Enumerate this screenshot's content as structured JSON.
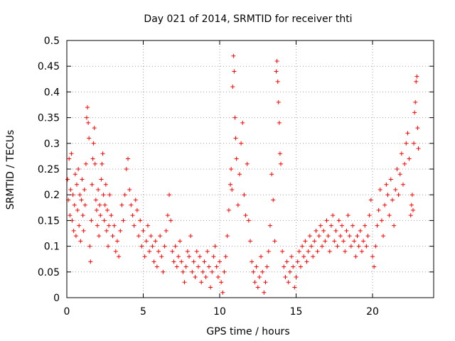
{
  "chart_data": {
    "type": "scatter",
    "title": "Day 021 of 2014, SRMTID for receiver thti",
    "xlabel": "GPS time / hours",
    "ylabel": "SRMTID / TECUs",
    "xlim": [
      0,
      24
    ],
    "ylim": [
      0,
      0.5
    ],
    "x_ticks": [
      0,
      5,
      10,
      15,
      20
    ],
    "x_tick_labels": [
      "0",
      "5",
      "10",
      "15",
      "20"
    ],
    "y_ticks": [
      0,
      0.05,
      0.1,
      0.15,
      0.2,
      0.25,
      0.3,
      0.35,
      0.4,
      0.45,
      0.5
    ],
    "y_tick_labels": [
      "0",
      "0.05",
      "0.1",
      "0.15",
      "0.2",
      "0.25",
      "0.3",
      "0.35",
      "0.4",
      "0.45",
      "0.5"
    ],
    "grid": true,
    "marker": "plus",
    "color": "#ff0000",
    "series": [
      {
        "name": "SRMTID",
        "points": [
          [
            0.05,
            0.23
          ],
          [
            0.1,
            0.19
          ],
          [
            0.15,
            0.27
          ],
          [
            0.2,
            0.16
          ],
          [
            0.25,
            0.21
          ],
          [
            0.3,
            0.28
          ],
          [
            0.35,
            0.15
          ],
          [
            0.4,
            0.2
          ],
          [
            0.45,
            0.13
          ],
          [
            0.5,
            0.18
          ],
          [
            0.55,
            0.24
          ],
          [
            0.6,
            0.12
          ],
          [
            0.65,
            0.22
          ],
          [
            0.7,
            0.17
          ],
          [
            0.75,
            0.25
          ],
          [
            0.8,
            0.14
          ],
          [
            0.85,
            0.2
          ],
          [
            0.9,
            0.11
          ],
          [
            0.95,
            0.19
          ],
          [
            1.0,
            0.23
          ],
          [
            1.05,
            0.16
          ],
          [
            1.1,
            0.13
          ],
          [
            1.15,
            0.21
          ],
          [
            1.2,
            0.18
          ],
          [
            1.25,
            0.26
          ],
          [
            1.3,
            0.35
          ],
          [
            1.35,
            0.37
          ],
          [
            1.4,
            0.34
          ],
          [
            1.45,
            0.31
          ],
          [
            1.5,
            0.1
          ],
          [
            1.55,
            0.07
          ],
          [
            1.6,
            0.15
          ],
          [
            1.65,
            0.22
          ],
          [
            1.7,
            0.27
          ],
          [
            1.75,
            0.3
          ],
          [
            1.8,
            0.33
          ],
          [
            1.85,
            0.26
          ],
          [
            1.9,
            0.19
          ],
          [
            1.95,
            0.17
          ],
          [
            2.0,
            0.14
          ],
          [
            2.05,
            0.21
          ],
          [
            2.1,
            0.12
          ],
          [
            2.15,
            0.18
          ],
          [
            2.2,
            0.16
          ],
          [
            2.25,
            0.23
          ],
          [
            2.3,
            0.26
          ],
          [
            2.35,
            0.28
          ],
          [
            2.4,
            0.2
          ],
          [
            2.45,
            0.15
          ],
          [
            2.5,
            0.18
          ],
          [
            2.55,
            0.22
          ],
          [
            2.6,
            0.13
          ],
          [
            2.65,
            0.17
          ],
          [
            2.7,
            0.1
          ],
          [
            2.75,
            0.14
          ],
          [
            2.8,
            0.2
          ],
          [
            2.9,
            0.16
          ],
          [
            3.0,
            0.12
          ],
          [
            3.1,
            0.14
          ],
          [
            3.2,
            0.09
          ],
          [
            3.3,
            0.11
          ],
          [
            3.4,
            0.08
          ],
          [
            3.5,
            0.13
          ],
          [
            3.6,
            0.18
          ],
          [
            3.7,
            0.15
          ],
          [
            3.8,
            0.2
          ],
          [
            3.9,
            0.25
          ],
          [
            4.0,
            0.27
          ],
          [
            4.1,
            0.21
          ],
          [
            4.2,
            0.18
          ],
          [
            4.3,
            0.16
          ],
          [
            4.4,
            0.14
          ],
          [
            4.5,
            0.19
          ],
          [
            4.6,
            0.17
          ],
          [
            4.7,
            0.12
          ],
          [
            4.8,
            0.15
          ],
          [
            4.9,
            0.1
          ],
          [
            5.0,
            0.13
          ],
          [
            5.1,
            0.08
          ],
          [
            5.2,
            0.11
          ],
          [
            5.3,
            0.14
          ],
          [
            5.4,
            0.09
          ],
          [
            5.5,
            0.12
          ],
          [
            5.6,
            0.1
          ],
          [
            5.7,
            0.07
          ],
          [
            5.8,
            0.11
          ],
          [
            5.9,
            0.06
          ],
          [
            6.0,
            0.09
          ],
          [
            6.1,
            0.12
          ],
          [
            6.2,
            0.08
          ],
          [
            6.3,
            0.05
          ],
          [
            6.4,
            0.1
          ],
          [
            6.5,
            0.13
          ],
          [
            6.6,
            0.16
          ],
          [
            6.7,
            0.2
          ],
          [
            6.8,
            0.15
          ],
          [
            6.9,
            0.09
          ],
          [
            7.0,
            0.07
          ],
          [
            7.1,
            0.1
          ],
          [
            7.2,
            0.06
          ],
          [
            7.3,
            0.08
          ],
          [
            7.4,
            0.11
          ],
          [
            7.5,
            0.07
          ],
          [
            7.6,
            0.05
          ],
          [
            7.7,
            0.03
          ],
          [
            7.8,
            0.06
          ],
          [
            7.9,
            0.09
          ],
          [
            8.0,
            0.08
          ],
          [
            8.1,
            0.12
          ],
          [
            8.2,
            0.05
          ],
          [
            8.3,
            0.07
          ],
          [
            8.4,
            0.04
          ],
          [
            8.5,
            0.09
          ],
          [
            8.6,
            0.06
          ],
          [
            8.7,
            0.08
          ],
          [
            8.8,
            0.03
          ],
          [
            8.9,
            0.05
          ],
          [
            9.0,
            0.07
          ],
          [
            9.1,
            0.04
          ],
          [
            9.2,
            0.09
          ],
          [
            9.3,
            0.06
          ],
          [
            9.4,
            0.02
          ],
          [
            9.5,
            0.05
          ],
          [
            9.6,
            0.08
          ],
          [
            9.7,
            0.1
          ],
          [
            9.8,
            0.06
          ],
          [
            9.9,
            0.04
          ],
          [
            10.0,
            0.07
          ],
          [
            10.1,
            0.03
          ],
          [
            10.2,
            0.01
          ],
          [
            10.3,
            0.05
          ],
          [
            10.4,
            0.08
          ],
          [
            10.5,
            0.12
          ],
          [
            10.6,
            0.17
          ],
          [
            10.7,
            0.22
          ],
          [
            10.75,
            0.25
          ],
          [
            10.8,
            0.21
          ],
          [
            10.85,
            0.41
          ],
          [
            10.9,
            0.47
          ],
          [
            10.95,
            0.44
          ],
          [
            11.0,
            0.35
          ],
          [
            11.05,
            0.31
          ],
          [
            11.1,
            0.27
          ],
          [
            11.2,
            0.18
          ],
          [
            11.3,
            0.24
          ],
          [
            11.4,
            0.3
          ],
          [
            11.5,
            0.34
          ],
          [
            11.6,
            0.2
          ],
          [
            11.7,
            0.16
          ],
          [
            11.8,
            0.26
          ],
          [
            11.9,
            0.15
          ],
          [
            12.0,
            0.11
          ],
          [
            12.1,
            0.07
          ],
          [
            12.2,
            0.05
          ],
          [
            12.3,
            0.03
          ],
          [
            12.4,
            0.06
          ],
          [
            12.5,
            0.02
          ],
          [
            12.6,
            0.04
          ],
          [
            12.7,
            0.08
          ],
          [
            12.8,
            0.05
          ],
          [
            12.9,
            0.01
          ],
          [
            13.0,
            0.03
          ],
          [
            13.1,
            0.06
          ],
          [
            13.2,
            0.09
          ],
          [
            13.3,
            0.14
          ],
          [
            13.4,
            0.24
          ],
          [
            13.5,
            0.19
          ],
          [
            13.6,
            0.11
          ],
          [
            13.7,
            0.44
          ],
          [
            13.75,
            0.46
          ],
          [
            13.8,
            0.42
          ],
          [
            13.85,
            0.38
          ],
          [
            13.9,
            0.34
          ],
          [
            13.95,
            0.28
          ],
          [
            14.0,
            0.26
          ],
          [
            14.1,
            0.09
          ],
          [
            14.2,
            0.06
          ],
          [
            14.3,
            0.04
          ],
          [
            14.4,
            0.07
          ],
          [
            14.5,
            0.03
          ],
          [
            14.6,
            0.05
          ],
          [
            14.7,
            0.08
          ],
          [
            14.8,
            0.06
          ],
          [
            14.9,
            0.02
          ],
          [
            15.0,
            0.04
          ],
          [
            15.1,
            0.07
          ],
          [
            15.2,
            0.09
          ],
          [
            15.3,
            0.06
          ],
          [
            15.4,
            0.1
          ],
          [
            15.5,
            0.08
          ],
          [
            15.6,
            0.11
          ],
          [
            15.7,
            0.07
          ],
          [
            15.8,
            0.09
          ],
          [
            15.9,
            0.12
          ],
          [
            16.0,
            0.1
          ],
          [
            16.1,
            0.08
          ],
          [
            16.2,
            0.11
          ],
          [
            16.3,
            0.13
          ],
          [
            16.4,
            0.09
          ],
          [
            16.5,
            0.12
          ],
          [
            16.6,
            0.14
          ],
          [
            16.7,
            0.1
          ],
          [
            16.8,
            0.13
          ],
          [
            16.9,
            0.11
          ],
          [
            17.0,
            0.15
          ],
          [
            17.1,
            0.12
          ],
          [
            17.2,
            0.09
          ],
          [
            17.3,
            0.14
          ],
          [
            17.4,
            0.16
          ],
          [
            17.5,
            0.11
          ],
          [
            17.6,
            0.13
          ],
          [
            17.7,
            0.1
          ],
          [
            17.8,
            0.15
          ],
          [
            17.9,
            0.12
          ],
          [
            18.0,
            0.14
          ],
          [
            18.1,
            0.11
          ],
          [
            18.2,
            0.09
          ],
          [
            18.3,
            0.13
          ],
          [
            18.4,
            0.16
          ],
          [
            18.5,
            0.12
          ],
          [
            18.6,
            0.1
          ],
          [
            18.7,
            0.14
          ],
          [
            18.8,
            0.11
          ],
          [
            18.9,
            0.08
          ],
          [
            19.0,
            0.12
          ],
          [
            19.1,
            0.1
          ],
          [
            19.2,
            0.13
          ],
          [
            19.3,
            0.09
          ],
          [
            19.4,
            0.11
          ],
          [
            19.5,
            0.14
          ],
          [
            19.6,
            0.1
          ],
          [
            19.7,
            0.12
          ],
          [
            19.8,
            0.16
          ],
          [
            19.9,
            0.19
          ],
          [
            20.0,
            0.08
          ],
          [
            20.1,
            0.06
          ],
          [
            20.2,
            0.1
          ],
          [
            20.3,
            0.14
          ],
          [
            20.4,
            0.17
          ],
          [
            20.5,
            0.21
          ],
          [
            20.6,
            0.15
          ],
          [
            20.7,
            0.12
          ],
          [
            20.8,
            0.18
          ],
          [
            20.9,
            0.22
          ],
          [
            21.0,
            0.2
          ],
          [
            21.1,
            0.16
          ],
          [
            21.2,
            0.23
          ],
          [
            21.3,
            0.19
          ],
          [
            21.4,
            0.14
          ],
          [
            21.5,
            0.21
          ],
          [
            21.6,
            0.25
          ],
          [
            21.7,
            0.2
          ],
          [
            21.8,
            0.24
          ],
          [
            21.9,
            0.28
          ],
          [
            22.0,
            0.22
          ],
          [
            22.1,
            0.26
          ],
          [
            22.2,
            0.3
          ],
          [
            22.3,
            0.32
          ],
          [
            22.4,
            0.27
          ],
          [
            22.5,
            0.16
          ],
          [
            22.55,
            0.18
          ],
          [
            22.6,
            0.2
          ],
          [
            22.65,
            0.17
          ],
          [
            22.7,
            0.3
          ],
          [
            22.75,
            0.36
          ],
          [
            22.8,
            0.38
          ],
          [
            22.85,
            0.42
          ],
          [
            22.9,
            0.43
          ],
          [
            22.95,
            0.33
          ],
          [
            23.0,
            0.29
          ]
        ]
      }
    ]
  }
}
